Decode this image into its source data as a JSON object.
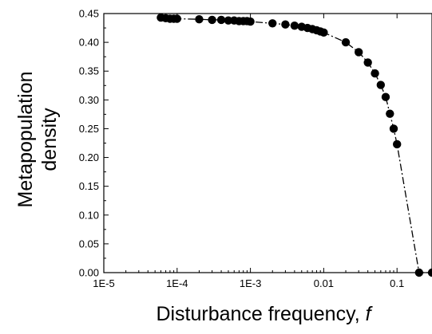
{
  "chart_data": {
    "type": "line",
    "title": "",
    "xlabel": "Disturbance frequency, ",
    "xlabel_var": "f",
    "ylabel_line1": "Metapopulation",
    "ylabel_line2": "density",
    "x_scale": "log",
    "xlim": [
      1e-05,
      0.3
    ],
    "ylim": [
      0.0,
      0.45
    ],
    "x_ticks": [
      {
        "value": 1e-05,
        "label": "1E-5"
      },
      {
        "value": 0.0001,
        "label": "1E-4"
      },
      {
        "value": 0.001,
        "label": "1E-3"
      },
      {
        "value": 0.01,
        "label": "0.01"
      },
      {
        "value": 0.1,
        "label": "0.1"
      }
    ],
    "y_ticks": [
      {
        "value": 0.0,
        "label": "0.00"
      },
      {
        "value": 0.05,
        "label": "0.05"
      },
      {
        "value": 0.1,
        "label": "0.10"
      },
      {
        "value": 0.15,
        "label": "0.15"
      },
      {
        "value": 0.2,
        "label": "0.20"
      },
      {
        "value": 0.25,
        "label": "0.25"
      },
      {
        "value": 0.3,
        "label": "0.30"
      },
      {
        "value": 0.35,
        "label": "0.35"
      },
      {
        "value": 0.4,
        "label": "0.40"
      },
      {
        "value": 0.45,
        "label": "0.45"
      }
    ],
    "grid": false,
    "series": [
      {
        "marker": "circle",
        "color": "#000000",
        "points": [
          [
            6e-05,
            0.443
          ],
          [
            7e-05,
            0.442
          ],
          [
            8e-05,
            0.441
          ],
          [
            9e-05,
            0.441
          ],
          [
            0.0001,
            0.441
          ],
          [
            0.0002,
            0.44
          ],
          [
            0.0003,
            0.439
          ],
          [
            0.0004,
            0.439
          ],
          [
            0.0005,
            0.438
          ],
          [
            0.0006,
            0.438
          ],
          [
            0.0007,
            0.437
          ],
          [
            0.0008,
            0.437
          ],
          [
            0.0009,
            0.437
          ],
          [
            0.001,
            0.436
          ],
          [
            0.002,
            0.433
          ],
          [
            0.003,
            0.431
          ],
          [
            0.004,
            0.429
          ],
          [
            0.005,
            0.427
          ],
          [
            0.006,
            0.425
          ],
          [
            0.007,
            0.423
          ],
          [
            0.008,
            0.421
          ],
          [
            0.009,
            0.419
          ],
          [
            0.01,
            0.417
          ],
          [
            0.02,
            0.4
          ],
          [
            0.03,
            0.383
          ],
          [
            0.04,
            0.365
          ],
          [
            0.05,
            0.346
          ],
          [
            0.06,
            0.326
          ],
          [
            0.07,
            0.305
          ],
          [
            0.08,
            0.276
          ],
          [
            0.09,
            0.25
          ],
          [
            0.1,
            0.223
          ],
          [
            0.2,
            0.0
          ],
          [
            0.3,
            0.0
          ]
        ]
      }
    ]
  }
}
